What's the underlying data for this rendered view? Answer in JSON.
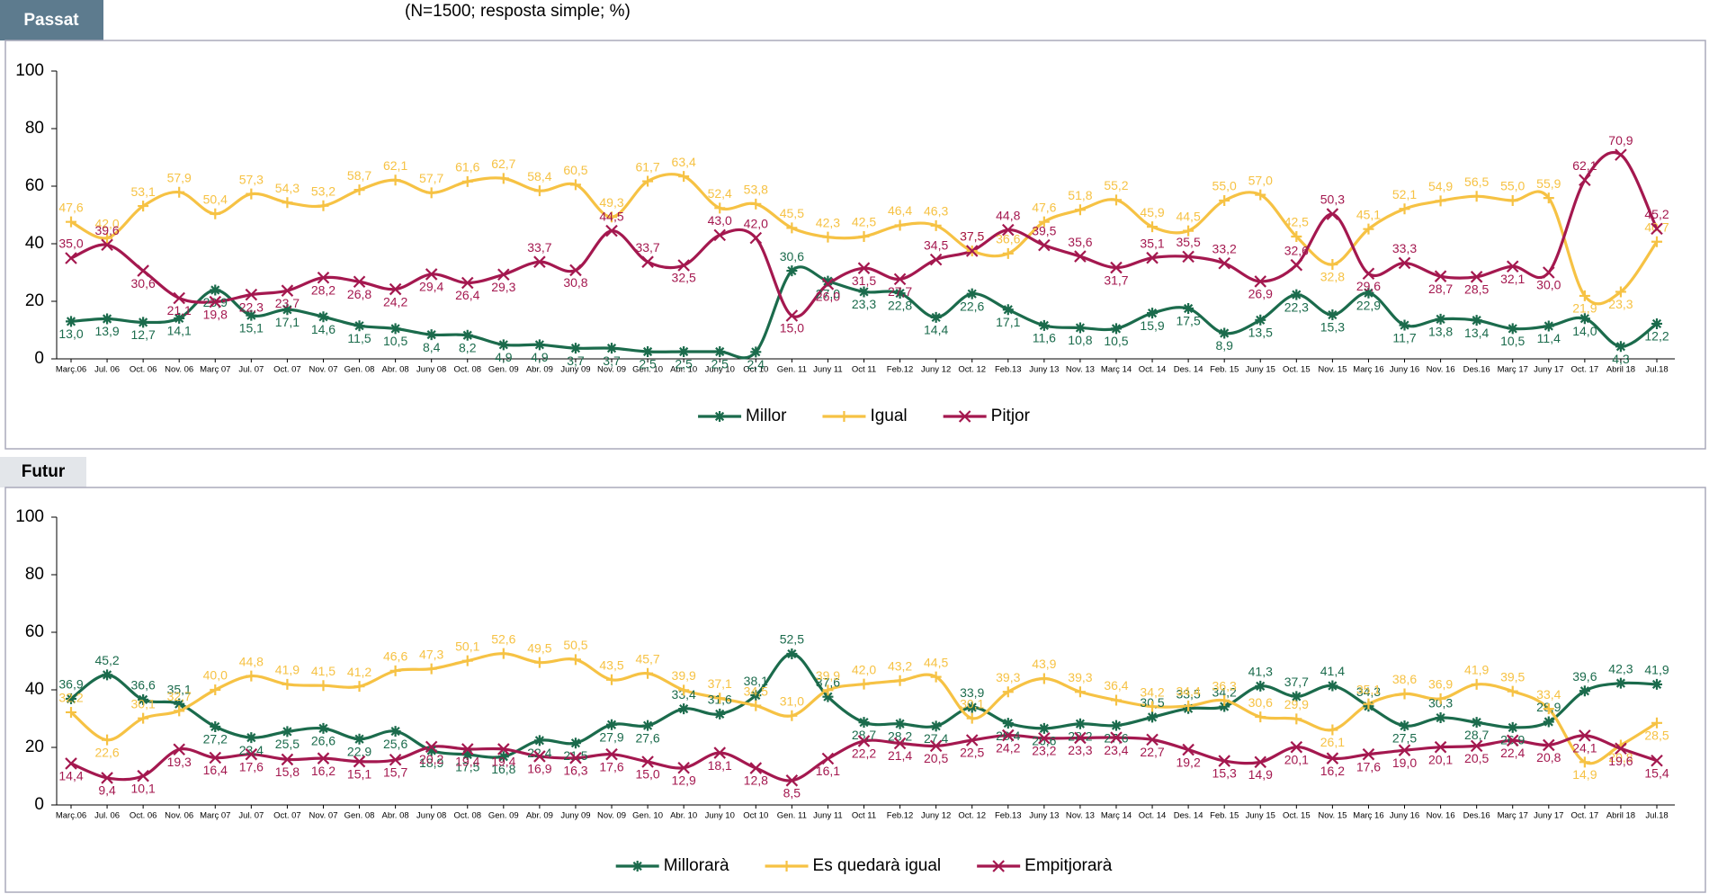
{
  "chart_data": [
    {
      "type": "line",
      "title": "Passat",
      "subtitle": "(N=1500; resposta simple; %)",
      "categories": [
        "Març.06",
        "Jul. 06",
        "Oct. 06",
        "Nov. 06",
        "Març 07",
        "Jul. 07",
        "Oct. 07",
        "Nov. 07",
        "Gen. 08",
        "Abr. 08",
        "Juny 08",
        "Oct. 08",
        "Gen. 09",
        "Abr. 09",
        "Juny 09",
        "Nov. 09",
        "Gen. 10",
        "Abr. 10",
        "Juny 10",
        "Oct 10",
        "Gen. 11",
        "Juny 11",
        "Oct 11",
        "Feb.12",
        "Juny 12",
        "Oct. 12",
        "Feb.13",
        "Juny 13",
        "Nov. 13",
        "Març 14",
        "Oct. 14",
        "Des. 14",
        "Feb. 15",
        "Juny 15",
        "Oct. 15",
        "Nov. 15",
        "Març 16",
        "Juny 16",
        "Nov. 16",
        "Des.16",
        "Març 17",
        "Juny 17",
        "Oct. 17",
        "Abril 18",
        "Jul.18"
      ],
      "series": [
        {
          "name": "Millor",
          "color": "#1b6b4c",
          "marker": "star",
          "values": [
            13.0,
            13.9,
            12.7,
            14.1,
            23.9,
            15.1,
            17.1,
            14.6,
            11.5,
            10.5,
            8.4,
            8.2,
            4.9,
            4.9,
            3.7,
            3.7,
            2.5,
            2.5,
            2.5,
            2.4,
            30.6,
            27.0,
            23.3,
            22.8,
            14.4,
            22.6,
            17.1,
            11.6,
            10.8,
            10.5,
            15.9,
            17.5,
            8.9,
            13.5,
            22.3,
            15.3,
            22.9,
            11.7,
            13.8,
            13.4,
            10.5,
            11.4,
            14.0,
            4.3,
            12.2
          ],
          "value_labels": [
            "13,0",
            "13,9",
            "12,7",
            "14,1",
            "23,9",
            "15,1",
            "17,1",
            "14,6",
            "11,5",
            "10,5",
            "8,4",
            "8,2",
            "4,9",
            "4,9",
            "3,7",
            "3,7",
            "2,5",
            "2,5",
            "2,5",
            "2,4",
            "30,6",
            "27,0",
            "23,3",
            "22,8",
            "14,4",
            "22,6",
            "17,1",
            "11,6",
            "10,8",
            "10,5",
            "15,9",
            "17,5",
            "8,9",
            "13,5",
            "22,3",
            "15,3",
            "22,9",
            "11,7",
            "13,8",
            "13,4",
            "10,5",
            "11,4",
            "14,0",
            "4,3",
            "12,2"
          ]
        },
        {
          "name": "Igual",
          "color": "#f6c244",
          "marker": "plus",
          "values": [
            47.6,
            42.0,
            53.1,
            57.9,
            50.4,
            57.3,
            54.3,
            53.2,
            58.7,
            62.1,
            57.7,
            61.6,
            62.7,
            58.4,
            60.5,
            49.3,
            61.7,
            63.4,
            52.4,
            53.8,
            45.5,
            42.3,
            42.5,
            46.4,
            46.3,
            37.5,
            36.6,
            47.6,
            51.8,
            55.2,
            45.9,
            44.5,
            55.0,
            57.0,
            42.5,
            32.8,
            45.1,
            52.1,
            54.9,
            56.5,
            55.0,
            55.9,
            21.9,
            23.3,
            40.7
          ],
          "value_labels": [
            "47,6",
            "42,0",
            "53,1",
            "57,9",
            "50,4",
            "57,3",
            "54,3",
            "53,2",
            "58,7",
            "62,1",
            "57,7",
            "61,6",
            "62,7",
            "58,4",
            "60,5",
            "49,3",
            "61,7",
            "63,4",
            "52,4",
            "53,8",
            "45,5",
            "42,3",
            "42,5",
            "46,4",
            "46,3",
            "37,5",
            "36,6",
            "47,6",
            "51,8",
            "55,2",
            "45,9",
            "44,5",
            "55,0",
            "57,0",
            "42,5",
            "32,8",
            "45,1",
            "52,1",
            "54,9",
            "56,5",
            "55,0",
            "55,9",
            "21,9",
            "23,3",
            "40,7"
          ]
        },
        {
          "name": "Pitjor",
          "color": "#a4184f",
          "marker": "x",
          "values": [
            35.0,
            39.6,
            30.6,
            21.1,
            19.8,
            22.3,
            23.7,
            28.2,
            26.8,
            24.2,
            29.4,
            26.4,
            29.3,
            33.7,
            30.8,
            44.5,
            33.7,
            32.5,
            43.0,
            42.0,
            15.0,
            26.0,
            31.5,
            27.7,
            34.5,
            37.5,
            44.8,
            39.5,
            35.6,
            31.7,
            35.1,
            35.5,
            33.2,
            26.9,
            32.6,
            50.3,
            29.6,
            33.3,
            28.7,
            28.5,
            32.1,
            30.0,
            62.1,
            70.9,
            45.2
          ],
          "value_labels": [
            "35,0",
            "39,6",
            "30,6",
            "21,1",
            "19,8",
            "22,3",
            "23,7",
            "28,2",
            "26,8",
            "24,2",
            "29,4",
            "26,4",
            "29,3",
            "33,7",
            "30,8",
            "44,5",
            "33,7",
            "32,5",
            "43,0",
            "42,0",
            "15,0",
            "26,0",
            "31,5",
            "27,7",
            "34,5",
            "37,5",
            "44,8",
            "39,5",
            "35,6",
            "31,7",
            "35,1",
            "35,5",
            "33,2",
            "26,9",
            "32,6",
            "50,3",
            "29,6",
            "33,3",
            "28,7",
            "28,5",
            "32,1",
            "30,0",
            "62,1",
            "70,9",
            "45,2"
          ]
        }
      ],
      "ylim": [
        0,
        100
      ],
      "yticks": [
        0,
        20,
        40,
        60,
        80,
        100
      ],
      "legend": "bottom"
    },
    {
      "type": "line",
      "title": "Futur",
      "categories": [
        "Març.06",
        "Jul. 06",
        "Oct. 06",
        "Nov. 06",
        "Març 07",
        "Jul. 07",
        "Oct. 07",
        "Nov. 07",
        "Gen. 08",
        "Abr. 08",
        "Juny 08",
        "Oct. 08",
        "Gen. 09",
        "Abr. 09",
        "Juny 09",
        "Nov. 09",
        "Gen. 10",
        "Abr. 10",
        "Juny 10",
        "Oct 10",
        "Gen. 11",
        "Juny 11",
        "Oct 11",
        "Feb.12",
        "Juny 12",
        "Oct. 12",
        "Feb.13",
        "Juny 13",
        "Nov. 13",
        "Març 14",
        "Oct. 14",
        "Des. 14",
        "Feb. 15",
        "Juny 15",
        "Oct. 15",
        "Nov. 15",
        "Març 16",
        "Juny 16",
        "Nov. 16",
        "Des.16",
        "Març 17",
        "Juny 17",
        "Oct. 17",
        "Abril 18",
        "Jul.18"
      ],
      "series": [
        {
          "name": "Millorarà",
          "color": "#1b6b4c",
          "marker": "star",
          "values": [
            36.9,
            45.2,
            36.6,
            35.1,
            27.2,
            23.4,
            25.5,
            26.6,
            22.9,
            25.6,
            18.9,
            17.5,
            16.8,
            22.4,
            21.5,
            27.9,
            27.6,
            33.4,
            31.6,
            38.1,
            52.5,
            37.6,
            28.7,
            28.2,
            27.4,
            33.9,
            28.4,
            26.6,
            28.2,
            27.6,
            30.5,
            33.5,
            34.2,
            41.3,
            37.7,
            41.4,
            34.3,
            27.5,
            30.3,
            28.7,
            26.9,
            28.9,
            39.6,
            42.3,
            41.9
          ],
          "value_labels": [
            "36,9",
            "45,2",
            "36,6",
            "35,1",
            "27,2",
            "23,4",
            "25,5",
            "26,6",
            "22,9",
            "25,6",
            "18,9",
            "17,5",
            "16,8",
            "22,4",
            "21,5",
            "27,9",
            "27,6",
            "33,4",
            "31,6",
            "38,1",
            "52,5",
            "37,6",
            "28,7",
            "28,2",
            "27,4",
            "33,9",
            "28,4",
            "26,6",
            "28,2",
            "27,6",
            "30,5",
            "33,5",
            "34,2",
            "41,3",
            "37,7",
            "41,4",
            "34,3",
            "27,5",
            "30,3",
            "28,7",
            "26,9",
            "28,9",
            "39,6",
            "42,3",
            "41,9"
          ]
        },
        {
          "name": "Es quedarà igual",
          "color": "#f6c244",
          "marker": "plus",
          "values": [
            32.2,
            22.6,
            30.1,
            32.7,
            40.0,
            44.8,
            41.9,
            41.5,
            41.2,
            46.6,
            47.3,
            50.1,
            52.6,
            49.5,
            50.5,
            43.5,
            45.7,
            39.9,
            37.1,
            34.5,
            31.0,
            39.9,
            42.0,
            43.2,
            44.5,
            30.1,
            39.3,
            43.9,
            39.3,
            36.4,
            34.2,
            34.4,
            36.3,
            30.6,
            29.9,
            26.1,
            35.1,
            38.6,
            36.9,
            41.9,
            39.5,
            33.4,
            14.9,
            20.8,
            28.5
          ],
          "value_labels": [
            "32,2",
            "22,6",
            "30,1",
            "32,7",
            "40,0",
            "44,8",
            "41,9",
            "41,5",
            "41,2",
            "46,6",
            "47,3",
            "50,1",
            "52,6",
            "49,5",
            "50,5",
            "43,5",
            "45,7",
            "39,9",
            "37,1",
            "34,5",
            "31,0",
            "39,9",
            "42,0",
            "43,2",
            "44,5",
            "30,1",
            "39,3",
            "43,9",
            "39,3",
            "36,4",
            "34,2",
            "34,4",
            "36,3",
            "30,6",
            "29,9",
            "26,1",
            "35,1",
            "38,6",
            "36,9",
            "41,9",
            "39,5",
            "33,4",
            "14,9",
            "20,8",
            "28,5"
          ]
        },
        {
          "name": "Empitjorarà",
          "color": "#a4184f",
          "marker": "x",
          "values": [
            14.4,
            9.4,
            10.1,
            19.3,
            16.4,
            17.6,
            15.8,
            16.2,
            15.1,
            15.7,
            20.2,
            19.4,
            19.4,
            16.9,
            16.3,
            17.6,
            15.0,
            12.9,
            18.1,
            12.8,
            8.5,
            16.1,
            22.2,
            21.4,
            20.5,
            22.5,
            24.2,
            23.2,
            23.3,
            23.4,
            22.7,
            19.2,
            15.3,
            14.9,
            20.1,
            16.2,
            17.6,
            19.0,
            20.1,
            20.5,
            22.4,
            20.8,
            24.1,
            19.6,
            15.4
          ],
          "value_labels": [
            "14,4",
            "9,4",
            "10,1",
            "19,3",
            "16,4",
            "17,6",
            "15,8",
            "16,2",
            "15,1",
            "15,7",
            "20,2",
            "19,4",
            "19,4",
            "16,9",
            "16,3",
            "17,6",
            "15,0",
            "12,9",
            "18,1",
            "12,8",
            "8,5",
            "16,1",
            "22,2",
            "21,4",
            "20,5",
            "22,5",
            "24,2",
            "23,2",
            "23,3",
            "23,4",
            "22,7",
            "19,2",
            "15,3",
            "14,9",
            "20,1",
            "16,2",
            "17,6",
            "19,0",
            "20,1",
            "20,5",
            "22,4",
            "20,8",
            "24,1",
            "19,6",
            "15,4"
          ]
        }
      ],
      "ylim": [
        0,
        100
      ],
      "yticks": [
        0,
        20,
        40,
        60,
        80,
        100
      ],
      "legend": "bottom"
    }
  ]
}
